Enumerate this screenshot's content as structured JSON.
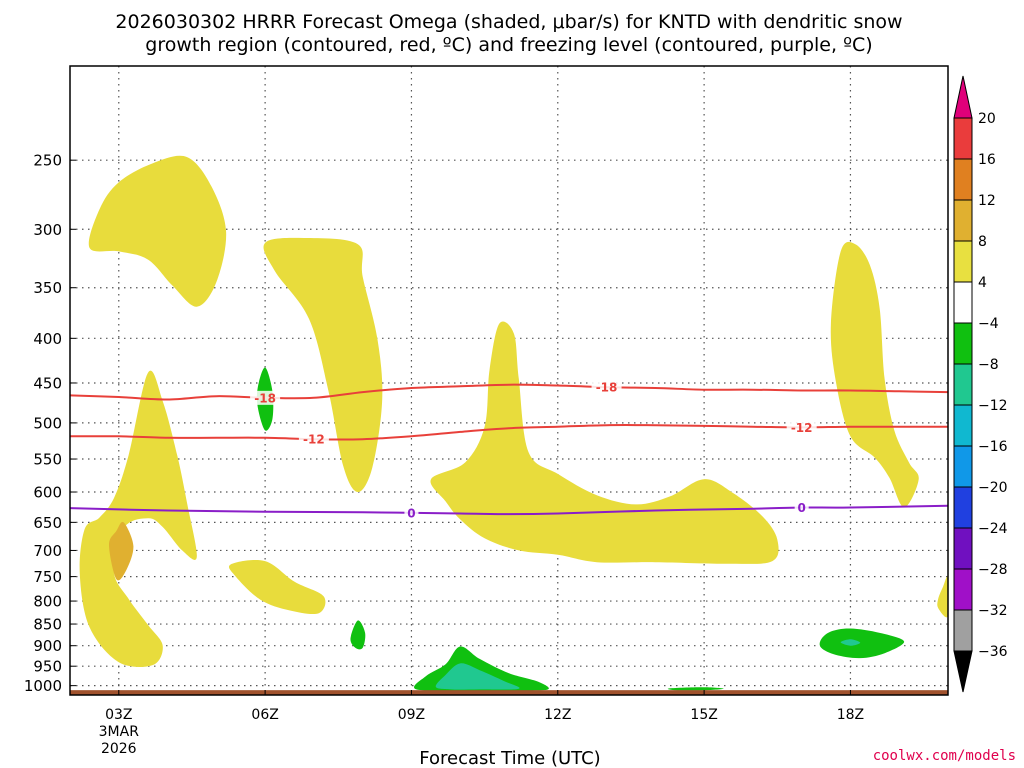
{
  "chart_data": {
    "type": "heatmap",
    "title_line1": "2026030302 HRRR Forecast Omega (shaded, μbar/s) for KNTD with dendritic snow",
    "title_line2": "growth region (contoured, red, ºC) and freezing level (contoured, purple, ºC)",
    "xlabel": "Forecast Time (UTC)",
    "x_ticks": [
      "03Z",
      "06Z",
      "09Z",
      "12Z",
      "15Z",
      "18Z"
    ],
    "x_tick_hours": [
      3,
      6,
      9,
      12,
      15,
      18
    ],
    "x_date_line1": "3MAR",
    "x_date_line2": "2026",
    "xlim_hours": [
      2,
      20
    ],
    "y_ticks": [
      250,
      300,
      350,
      400,
      450,
      500,
      550,
      600,
      650,
      700,
      750,
      800,
      850,
      900,
      950,
      1000
    ],
    "y_labels": [
      "250",
      "300",
      "350",
      "400",
      "450",
      "500",
      "550",
      "600",
      "650",
      "700",
      "750",
      "800",
      "850",
      "900",
      "950",
      "1000"
    ],
    "ylim_hpa": [
      195,
      1025
    ],
    "colorbar": {
      "labels": [
        "20",
        "16",
        "12",
        "8",
        "4",
        "−4",
        "−8",
        "−12",
        "−16",
        "−20",
        "−24",
        "−28",
        "−32",
        "−36"
      ],
      "colors": [
        "#e8e040",
        "#e0b030",
        "#e08020",
        "#ea3c3c",
        "#e0007a",
        "#ffffff",
        "#10c010",
        "#20c890",
        "#10b8d0",
        "#1098e8",
        "#2040e0",
        "#7010c0",
        "#a010c8",
        "#a0a0a0",
        "#000000"
      ]
    },
    "contours": [
      {
        "name": "dendritic-minus-18",
        "label": "-18",
        "color": "#e8403a",
        "points": [
          [
            2,
            465
          ],
          [
            3,
            467
          ],
          [
            4,
            470
          ],
          [
            5,
            466
          ],
          [
            6,
            468
          ],
          [
            7,
            468
          ],
          [
            8,
            461
          ],
          [
            9,
            456
          ],
          [
            10,
            454
          ],
          [
            11,
            452
          ],
          [
            12,
            453
          ],
          [
            13,
            455
          ],
          [
            14,
            456
          ],
          [
            15,
            458
          ],
          [
            16,
            458
          ],
          [
            17,
            459
          ],
          [
            18,
            459
          ],
          [
            19,
            460
          ],
          [
            20,
            461
          ]
        ]
      },
      {
        "name": "dendritic-minus-12",
        "label": "-12",
        "color": "#e8403a",
        "points": [
          [
            2,
            518
          ],
          [
            3,
            518
          ],
          [
            4,
            520
          ],
          [
            5,
            520
          ],
          [
            6,
            520
          ],
          [
            7,
            522
          ],
          [
            8,
            522
          ],
          [
            9,
            518
          ],
          [
            10,
            512
          ],
          [
            11,
            507
          ],
          [
            12,
            505
          ],
          [
            13,
            503
          ],
          [
            14,
            503
          ],
          [
            15,
            504
          ],
          [
            16,
            505
          ],
          [
            17,
            506
          ],
          [
            18,
            505
          ],
          [
            19,
            505
          ],
          [
            20,
            505
          ]
        ]
      },
      {
        "name": "freezing-level-0",
        "label": "0",
        "color": "#8a1ec8",
        "points": [
          [
            2,
            626
          ],
          [
            4,
            630
          ],
          [
            6,
            632
          ],
          [
            8,
            633
          ],
          [
            10,
            635
          ],
          [
            11,
            636
          ],
          [
            12,
            635
          ],
          [
            14,
            630
          ],
          [
            16,
            627
          ],
          [
            17,
            625
          ],
          [
            18,
            625
          ],
          [
            20,
            622
          ]
        ]
      }
    ],
    "shaded_regions": [
      {
        "name": "omega-4-8-upper-left",
        "level": "4 to 8",
        "color": "#e8dc3c",
        "points": [
          [
            2.4,
            315
          ],
          [
            2.6,
            285
          ],
          [
            3.0,
            265
          ],
          [
            3.7,
            252
          ],
          [
            4.4,
            248
          ],
          [
            4.9,
            268
          ],
          [
            5.2,
            302
          ],
          [
            5.0,
            345
          ],
          [
            4.6,
            368
          ],
          [
            4.1,
            348
          ],
          [
            3.6,
            325
          ],
          [
            3.0,
            318
          ]
        ]
      },
      {
        "name": "omega-4-8-06z-column",
        "level": "4 to 8",
        "color": "#e8dc3c",
        "points": [
          [
            6.0,
            311
          ],
          [
            6.8,
            307
          ],
          [
            7.9,
            312
          ],
          [
            8.0,
            340
          ],
          [
            8.3,
            400
          ],
          [
            8.4,
            470
          ],
          [
            8.2,
            562
          ],
          [
            7.9,
            600
          ],
          [
            7.6,
            560
          ],
          [
            7.3,
            460
          ],
          [
            6.9,
            380
          ],
          [
            6.2,
            335
          ]
        ]
      },
      {
        "name": "omega-4-8-low-left",
        "level": "4 to 8",
        "color": "#e8dc3c",
        "points": [
          [
            2.3,
            662
          ],
          [
            2.6,
            642
          ],
          [
            2.9,
            610
          ],
          [
            3.2,
            545
          ],
          [
            3.6,
            438
          ],
          [
            3.9,
            472
          ],
          [
            4.2,
            545
          ],
          [
            4.4,
            618
          ],
          [
            4.6,
            712
          ],
          [
            4.3,
            700
          ],
          [
            3.9,
            658
          ],
          [
            3.6,
            643
          ],
          [
            3.1,
            660
          ],
          [
            2.9,
            740
          ],
          [
            3.2,
            795
          ],
          [
            3.6,
            852
          ],
          [
            3.9,
            900
          ],
          [
            3.7,
            947
          ],
          [
            3.0,
            940
          ],
          [
            2.4,
            857
          ],
          [
            2.2,
            745
          ]
        ]
      },
      {
        "name": "omega-4-8-0630z-blob",
        "level": "4 to 8",
        "color": "#e8dc3c",
        "points": [
          [
            5.3,
            726
          ],
          [
            6.0,
            720
          ],
          [
            6.6,
            760
          ],
          [
            7.2,
            790
          ],
          [
            7.1,
            826
          ],
          [
            6.5,
            820
          ],
          [
            5.9,
            797
          ],
          [
            5.4,
            750
          ]
        ]
      },
      {
        "name": "omega-4-8-09z-15z",
        "level": "4 to 8",
        "color": "#e8dc3c",
        "points": [
          [
            9.4,
            580
          ],
          [
            10.1,
            555
          ],
          [
            10.5,
            505
          ],
          [
            10.6,
            435
          ],
          [
            10.8,
            385
          ],
          [
            11.1,
            395
          ],
          [
            11.2,
            445
          ],
          [
            11.4,
            540
          ],
          [
            12.0,
            572
          ],
          [
            12.8,
            605
          ],
          [
            13.6,
            620
          ],
          [
            14.3,
            607
          ],
          [
            15.0,
            580
          ],
          [
            15.6,
            602
          ],
          [
            16.2,
            640
          ],
          [
            16.5,
            680
          ],
          [
            16.4,
            720
          ],
          [
            15.5,
            725
          ],
          [
            14.0,
            722
          ],
          [
            12.8,
            722
          ],
          [
            12.0,
            708
          ],
          [
            11.2,
            700
          ],
          [
            10.5,
            678
          ],
          [
            10.0,
            645
          ],
          [
            9.7,
            615
          ]
        ]
      },
      {
        "name": "omega-4-8-18z-column",
        "level": "4 to 8",
        "color": "#e8dc3c",
        "points": [
          [
            17.7,
            448
          ],
          [
            17.6,
            385
          ],
          [
            17.8,
            318
          ],
          [
            18.1,
            312
          ],
          [
            18.4,
            330
          ],
          [
            18.6,
            370
          ],
          [
            18.7,
            445
          ],
          [
            18.9,
            510
          ],
          [
            19.2,
            555
          ],
          [
            19.4,
            580
          ],
          [
            19.1,
            625
          ],
          [
            18.8,
            578
          ],
          [
            18.5,
            548
          ],
          [
            18.0,
            518
          ]
        ]
      },
      {
        "name": "omega-4-8-right-edge",
        "level": "4 to 8",
        "color": "#e8dc3c",
        "points": [
          [
            19.8,
            795
          ],
          [
            19.9,
            770
          ],
          [
            20,
            752
          ],
          [
            20,
            832
          ],
          [
            19.8,
            815
          ]
        ]
      },
      {
        "name": "omega-8-12-0245z",
        "level": "8 to 12",
        "color": "#e0b030",
        "points": [
          [
            2.8,
            690
          ],
          [
            2.95,
            665
          ],
          [
            3.1,
            650
          ],
          [
            3.3,
            692
          ],
          [
            3.15,
            738
          ],
          [
            2.95,
            755
          ]
        ]
      },
      {
        "name": "omega-minus-4-06z",
        "level": "-8 to -4",
        "color": "#10c010",
        "points": [
          [
            5.85,
            455
          ],
          [
            6.0,
            432
          ],
          [
            6.15,
            460
          ],
          [
            6.15,
            495
          ],
          [
            6.0,
            510
          ],
          [
            5.85,
            480
          ]
        ]
      },
      {
        "name": "omega-minus-4-08z",
        "level": "-8 to -4",
        "color": "#10c010",
        "points": [
          [
            7.75,
            883
          ],
          [
            7.9,
            842
          ],
          [
            8.05,
            870
          ],
          [
            8.0,
            905
          ],
          [
            7.85,
            905
          ]
        ]
      },
      {
        "name": "omega-minus-4-10z",
        "level": "-8 to -4",
        "color": "#10c010",
        "points": [
          [
            9.1,
            1010
          ],
          [
            9.3,
            975
          ],
          [
            9.7,
            945
          ],
          [
            10.0,
            902
          ],
          [
            10.4,
            932
          ],
          [
            11.0,
            968
          ],
          [
            11.6,
            990
          ],
          [
            11.8,
            1010
          ],
          [
            11.2,
            1013
          ],
          [
            10.2,
            1013
          ]
        ]
      },
      {
        "name": "omega-minus-8-10z",
        "level": "-12 to -8",
        "color": "#20c890",
        "points": [
          [
            9.5,
            1003
          ],
          [
            9.7,
            972
          ],
          [
            10.0,
            943
          ],
          [
            10.4,
            960
          ],
          [
            10.9,
            988
          ],
          [
            11.2,
            1008
          ],
          [
            10.4,
            1010
          ],
          [
            9.8,
            1010
          ]
        ]
      },
      {
        "name": "omega-minus-4-1430z",
        "level": "-8 to -4",
        "color": "#10c010",
        "points": [
          [
            14.3,
            1007
          ],
          [
            15.0,
            1004
          ],
          [
            15.4,
            1008
          ],
          [
            15.0,
            1012
          ],
          [
            14.4,
            1012
          ]
        ]
      },
      {
        "name": "omega-minus-4-18z",
        "level": "-8 to -4",
        "color": "#10c010",
        "points": [
          [
            17.4,
            885
          ],
          [
            17.6,
            867
          ],
          [
            18.0,
            860
          ],
          [
            18.6,
            870
          ],
          [
            19.1,
            890
          ],
          [
            18.7,
            918
          ],
          [
            18.2,
            930
          ],
          [
            17.7,
            922
          ],
          [
            17.4,
            905
          ]
        ]
      },
      {
        "name": "omega-minus-8-18z",
        "level": "-12 to -8",
        "color": "#20c890",
        "points": [
          [
            17.8,
            892
          ],
          [
            18.0,
            885
          ],
          [
            18.2,
            893
          ],
          [
            18.0,
            900
          ]
        ]
      }
    ]
  },
  "credit": "coolwx.com/models",
  "colors": {
    "ground": "#a0522d",
    "grid": "#555555",
    "credit": "#e0004d"
  }
}
